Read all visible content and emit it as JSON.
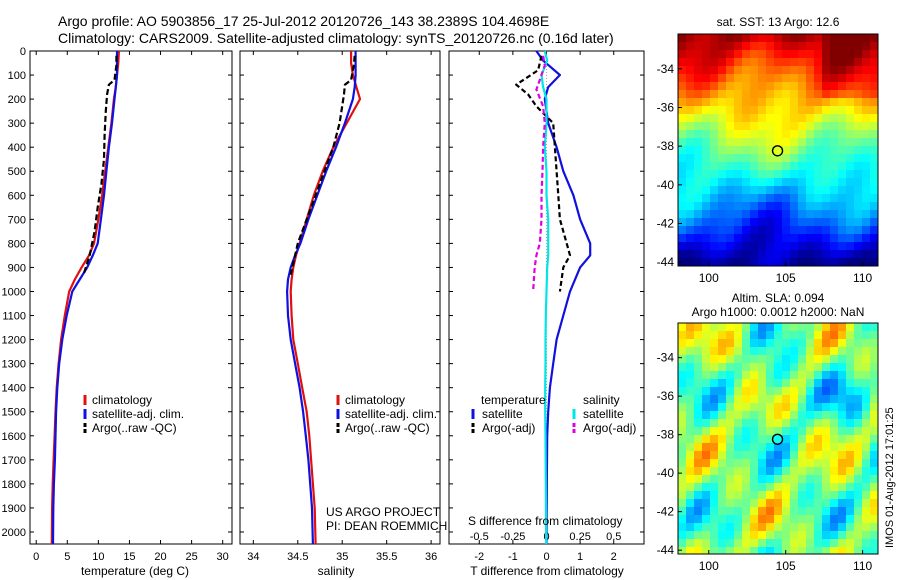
{
  "header": {
    "line1": "Argo profile: AO 5903856_17 25-Jul-2012 20120726_143 38.2389S 104.4698E",
    "line2": "Climatology: CARS2009. Satellite-adjusted climatology: synTS_20120726.nc (0.16d later)"
  },
  "project_lines": [
    "US ARGO PROJECT",
    "PI: DEAN ROEMMICH"
  ],
  "credit": "IMOS 01-Aug-2012 17:01:25",
  "colors": {
    "climatology": "#e01010",
    "satellite": "#1010e0",
    "argo": "#000000",
    "sat_salinity": "#00e5e5",
    "argo_salinity": "#e000e0"
  },
  "chart_data": [
    {
      "type": "line",
      "xlabel": "temperature (deg C)",
      "ylabel": "",
      "xlim": [
        -1,
        31.5
      ],
      "ylim": [
        0,
        2050
      ],
      "y_inverted": true,
      "xticks": [
        0,
        5,
        10,
        15,
        20,
        25,
        30
      ],
      "yticks": [
        0,
        100,
        200,
        300,
        400,
        500,
        600,
        700,
        800,
        900,
        1000,
        1100,
        1200,
        1300,
        1400,
        1500,
        1600,
        1700,
        1800,
        1900,
        2000
      ],
      "legend": {
        "placement": "lower-center",
        "entries": [
          "climatology",
          "satellite-adj. clim.",
          "Argo(..raw -QC)"
        ]
      },
      "series": [
        {
          "name": "climatology",
          "color": "#e01010",
          "dash": "",
          "x": [
            13.3,
            13.2,
            13.0,
            12.8,
            12.5,
            12.1,
            11.6,
            11.1,
            10.6,
            10.0,
            9.3,
            8.5,
            7.3,
            6.2,
            5.3,
            4.6,
            4.0,
            3.6,
            3.3,
            3.1,
            2.95,
            2.8,
            2.65,
            2.55,
            2.5
          ],
          "y": [
            0,
            50,
            100,
            150,
            200,
            300,
            400,
            500,
            600,
            700,
            800,
            850,
            900,
            950,
            1000,
            1100,
            1200,
            1300,
            1400,
            1500,
            1600,
            1700,
            1800,
            1900,
            2050
          ]
        },
        {
          "name": "satellite-adj. clim.",
          "color": "#1010e0",
          "dash": "",
          "x": [
            13.0,
            13.0,
            13.0,
            12.8,
            12.6,
            12.2,
            11.7,
            11.3,
            10.9,
            10.4,
            9.9,
            9.1,
            8.2,
            7.0,
            5.8,
            4.9,
            4.2,
            3.7,
            3.4,
            3.2,
            3.1,
            3.0,
            2.85,
            2.75,
            2.7
          ],
          "y": [
            0,
            50,
            100,
            150,
            200,
            300,
            400,
            500,
            600,
            700,
            800,
            850,
            900,
            950,
            1000,
            1100,
            1200,
            1300,
            1400,
            1500,
            1600,
            1700,
            1800,
            1900,
            2050
          ]
        },
        {
          "name": "Argo(..raw -QC)",
          "color": "#000000",
          "dash": "6 3",
          "x": [
            12.9,
            12.9,
            12.6,
            11.7,
            11.4,
            11.2,
            11.0,
            10.9,
            10.5,
            9.9,
            9.4,
            8.6,
            7.6
          ],
          "y": [
            20,
            60,
            120,
            140,
            180,
            250,
            350,
            450,
            550,
            650,
            750,
            850,
            930
          ]
        }
      ]
    },
    {
      "type": "line",
      "xlabel": "salinity",
      "ylabel": "",
      "xlim": [
        33.85,
        36.1
      ],
      "ylim": [
        0,
        2050
      ],
      "y_inverted": true,
      "xticks": [
        34,
        34.5,
        35,
        35.5,
        36
      ],
      "legend": {
        "placement": "lower-right",
        "entries": [
          "climatology",
          "satellite-adj. clim.",
          "Argo(..raw -QC)"
        ]
      },
      "series": [
        {
          "name": "climatology",
          "color": "#e01010",
          "dash": "",
          "x": [
            35.1,
            35.1,
            35.12,
            35.16,
            35.2,
            35.05,
            34.9,
            34.78,
            34.68,
            34.6,
            34.52,
            34.48,
            34.45,
            34.43,
            34.42,
            34.43,
            34.45,
            34.5,
            34.55,
            34.6,
            34.63,
            34.65,
            34.67,
            34.69,
            34.7
          ],
          "y": [
            0,
            50,
            100,
            150,
            200,
            300,
            400,
            500,
            600,
            700,
            800,
            850,
            900,
            950,
            1000,
            1100,
            1200,
            1300,
            1400,
            1500,
            1600,
            1700,
            1800,
            1900,
            2050
          ]
        },
        {
          "name": "satellite-adj. clim.",
          "color": "#1010e0",
          "dash": "",
          "x": [
            35.15,
            35.15,
            35.15,
            35.14,
            35.12,
            35.03,
            34.93,
            34.82,
            34.72,
            34.62,
            34.53,
            34.47,
            34.42,
            34.39,
            34.38,
            34.39,
            34.42,
            34.47,
            34.52,
            34.56,
            34.59,
            34.62,
            34.64,
            34.66,
            34.67
          ],
          "y": [
            0,
            50,
            100,
            150,
            200,
            300,
            400,
            500,
            600,
            700,
            800,
            850,
            900,
            950,
            1000,
            1100,
            1200,
            1300,
            1400,
            1500,
            1600,
            1700,
            1800,
            1900,
            2050
          ]
        },
        {
          "name": "Argo(..raw -QC)",
          "color": "#000000",
          "dash": "6 3",
          "x": [
            35.14,
            35.13,
            35.1,
            35.03,
            35.02,
            34.97,
            34.9,
            34.8,
            34.7,
            34.6,
            34.5,
            34.42
          ],
          "y": [
            20,
            60,
            120,
            140,
            180,
            300,
            400,
            500,
            600,
            700,
            800,
            930
          ]
        }
      ]
    },
    {
      "type": "line",
      "xlabel": "T difference from climatology",
      "x2label": "S difference from climatology",
      "ylabel": "",
      "xlim": [
        -2.9,
        2.9
      ],
      "ylim": [
        0,
        2050
      ],
      "y_inverted": true,
      "xticks": [
        -2,
        -1,
        0,
        1,
        2
      ],
      "x2ticks": [
        "-0.5",
        "-0.25",
        "0",
        "0.25",
        "0.5"
      ],
      "legend": {
        "placement": "lower-center",
        "temperature_title": "temperature",
        "salinity_title": "salinity",
        "temperature_entries": [
          "satellite",
          "Argo(-adj)"
        ],
        "salinity_entries": [
          "satellite",
          "Argo(-adj)"
        ]
      },
      "series": [
        {
          "name": "satellite",
          "color": "#1010e0",
          "dash": "",
          "x": [
            -0.3,
            -0.1,
            0.4,
            0.05,
            -0.05,
            0.05,
            0.3,
            0.5,
            0.8,
            1.0,
            1.3,
            1.3,
            1.0,
            0.7,
            0.5,
            0.3,
            0.2,
            0.1,
            0.05,
            0.02,
            0.01,
            0
          ],
          "y": [
            0,
            40,
            100,
            150,
            200,
            300,
            400,
            500,
            600,
            700,
            800,
            850,
            900,
            1000,
            1100,
            1200,
            1300,
            1400,
            1500,
            1600,
            1800,
            2050
          ]
        },
        {
          "name": "Argo(-adj)",
          "color": "#000000",
          "dash": "5 3",
          "x": [
            -0.15,
            -0.25,
            -0.9,
            -0.55,
            -0.3,
            0.2,
            0.25,
            0.3,
            0.35,
            0.4,
            0.6,
            0.7,
            0.5,
            0.4
          ],
          "y": [
            20,
            80,
            140,
            180,
            230,
            300,
            400,
            500,
            600,
            700,
            800,
            850,
            900,
            1000
          ]
        },
        {
          "name": "satellite",
          "color": "#00e5e5",
          "dash": "",
          "x": [
            -0.05,
            0.02,
            -0.15,
            -0.1,
            0.0,
            0.0,
            -0.05,
            0.0,
            0.0,
            0.05,
            0.05,
            0.05,
            0.02,
            0.0,
            -0.02,
            -0.03,
            -0.03,
            -0.04,
            -0.04,
            -0.03,
            -0.02,
            -0.01
          ],
          "y": [
            0,
            40,
            100,
            150,
            200,
            300,
            400,
            500,
            600,
            700,
            800,
            850,
            900,
            1000,
            1100,
            1200,
            1300,
            1400,
            1500,
            1600,
            1800,
            2050
          ]
        },
        {
          "name": "Argo(-adj)",
          "color": "#e000e0",
          "dash": "5 3",
          "x": [
            -0.1,
            -0.05,
            -0.2,
            -0.3,
            -0.1,
            -0.05,
            -0.1,
            -0.12,
            -0.15,
            -0.15,
            -0.2,
            -0.3,
            -0.35,
            -0.4
          ],
          "y": [
            20,
            60,
            120,
            160,
            230,
            300,
            400,
            500,
            600,
            700,
            800,
            850,
            900,
            1000
          ]
        }
      ]
    },
    {
      "type": "heatmap",
      "title": "sat. SST: 13 Argo: 12.6",
      "xlim": [
        98,
        111
      ],
      "ylim": [
        -44.2,
        -32.2
      ],
      "xticks": [
        100,
        105,
        110
      ],
      "yticks": [
        -34,
        -36,
        -38,
        -40,
        -42,
        -44
      ],
      "marker": {
        "lon": 104.47,
        "lat": -38.24
      }
    },
    {
      "type": "heatmap",
      "title_lines": [
        "Altim. SLA: 0.094",
        "Argo h1000: 0.0012 h2000: NaN"
      ],
      "xlim": [
        98,
        111
      ],
      "ylim": [
        -44.2,
        -32.2
      ],
      "xticks": [
        100,
        105,
        110
      ],
      "yticks": [
        -34,
        -36,
        -38,
        -40,
        -42,
        -44
      ],
      "marker": {
        "lon": 104.47,
        "lat": -38.24
      }
    }
  ]
}
